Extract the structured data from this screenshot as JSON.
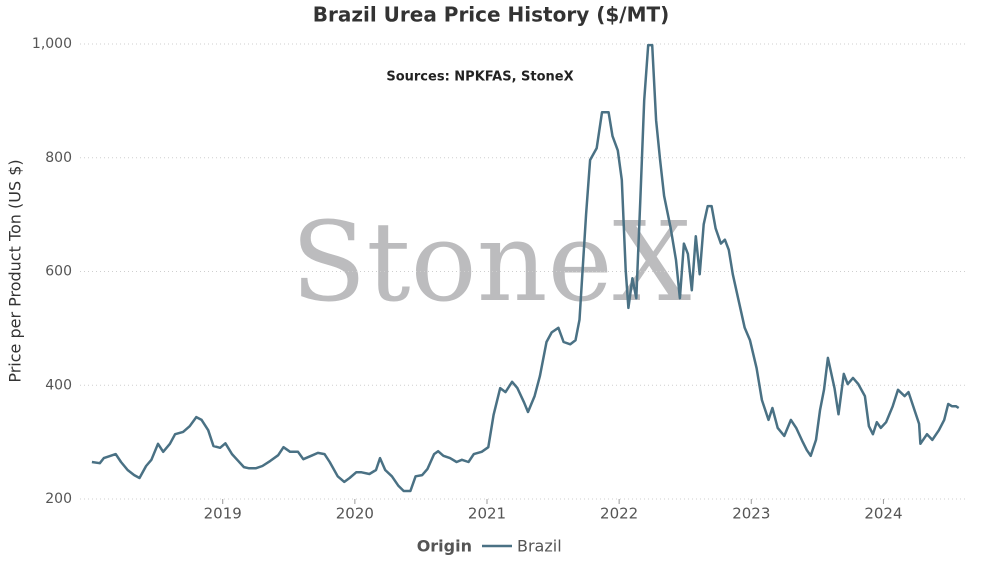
{
  "chart_data": {
    "type": "line",
    "title": "Brazil Urea Price History ($/MT)",
    "subtitle": "Sources: NPKFAS, StoneX",
    "watermark": "StoneX",
    "y_label": "Price per Product Ton (US $)",
    "legend_title": "Origin",
    "x": [
      2018.01,
      2018.07,
      2018.1,
      2018.14,
      2018.19,
      2018.23,
      2018.28,
      2018.33,
      2018.37,
      2018.42,
      2018.46,
      2018.51,
      2018.55,
      2018.6,
      2018.64,
      2018.7,
      2018.75,
      2018.8,
      2018.84,
      2018.89,
      2018.93,
      2018.98,
      2019.02,
      2019.07,
      2019.11,
      2019.16,
      2019.2,
      2019.25,
      2019.3,
      2019.36,
      2019.42,
      2019.46,
      2019.51,
      2019.57,
      2019.61,
      2019.67,
      2019.72,
      2019.77,
      2019.81,
      2019.87,
      2019.92,
      2019.96,
      2020.01,
      2020.05,
      2020.11,
      2020.16,
      2020.19,
      2020.23,
      2020.28,
      2020.33,
      2020.37,
      2020.42,
      2020.46,
      2020.51,
      2020.55,
      2020.6,
      2020.63,
      2020.67,
      2020.72,
      2020.77,
      2020.81,
      2020.86,
      2020.9,
      2020.96,
      2021.01,
      2021.05,
      2021.1,
      2021.14,
      2021.19,
      2021.23,
      2021.28,
      2021.31,
      2021.36,
      2021.4,
      2021.45,
      2021.49,
      2021.54,
      2021.58,
      2021.63,
      2021.67,
      2021.7,
      2021.75,
      2021.78,
      2021.83,
      2021.87,
      2021.92,
      2021.95,
      2021.99,
      2022.02,
      2022.05,
      2022.07,
      2022.1,
      2022.13,
      2022.16,
      2022.19,
      2022.22,
      2022.25,
      2022.28,
      2022.31,
      2022.34,
      2022.39,
      2022.43,
      2022.46,
      2022.49,
      2022.52,
      2022.55,
      2022.58,
      2022.61,
      2022.64,
      2022.67,
      2022.7,
      2022.73,
      2022.77,
      2022.8,
      2022.83,
      2022.86,
      2022.9,
      2022.95,
      2022.99,
      2023.04,
      2023.08,
      2023.13,
      2023.16,
      2023.2,
      2023.25,
      2023.3,
      2023.34,
      2023.39,
      2023.42,
      2023.45,
      2023.49,
      2023.52,
      2023.55,
      2023.58,
      2023.63,
      2023.66,
      2023.7,
      2023.73,
      2023.77,
      2023.81,
      2023.86,
      2023.89,
      2023.92,
      2023.95,
      2023.98,
      2024.02,
      2024.07,
      2024.11,
      2024.16,
      2024.19,
      2024.23,
      2024.27,
      2024.28,
      2024.33,
      2024.37,
      2024.42,
      2024.46,
      2024.49,
      2024.52,
      2024.55,
      2024.57
    ],
    "series": [
      {
        "name": "Brazil",
        "color": "#4a7184",
        "values": [
          265,
          263,
          272,
          275,
          279,
          265,
          251,
          242,
          237,
          258,
          269,
          297,
          283,
          297,
          314,
          318,
          328,
          344,
          339,
          321,
          293,
          290,
          298,
          279,
          269,
          256,
          254,
          254,
          258,
          267,
          277,
          291,
          283,
          283,
          270,
          276,
          281,
          279,
          265,
          240,
          230,
          237,
          247,
          247,
          244,
          251,
          272,
          251,
          240,
          223,
          214,
          214,
          240,
          242,
          253,
          279,
          284,
          276,
          272,
          265,
          269,
          265,
          279,
          283,
          291,
          348,
          395,
          388,
          406,
          395,
          370,
          353,
          381,
          416,
          476,
          493,
          501,
          476,
          472,
          479,
          515,
          701,
          796,
          817,
          880,
          880,
          838,
          813,
          761,
          602,
          536,
          588,
          553,
          725,
          901,
          998,
          998,
          866,
          796,
          733,
          676,
          620,
          553,
          649,
          631,
          567,
          662,
          595,
          683,
          715,
          715,
          676,
          649,
          656,
          638,
          595,
          553,
          501,
          479,
          430,
          374,
          339,
          360,
          325,
          311,
          339,
          325,
          300,
          286,
          276,
          304,
          356,
          392,
          448,
          395,
          349,
          420,
          402,
          413,
          402,
          381,
          328,
          314,
          335,
          325,
          335,
          363,
          392,
          381,
          388,
          360,
          332,
          297,
          314,
          304,
          321,
          339,
          367,
          363,
          363,
          360
        ]
      }
    ],
    "xlim": [
      2017.92,
      2024.64
    ],
    "xticks": [
      2019,
      2020,
      2021,
      2022,
      2023,
      2024
    ],
    "ylim": [
      200,
      1000
    ],
    "yticks": [
      200,
      400,
      600,
      800,
      {
        "value": 1000,
        "label": "1,000"
      }
    ],
    "grid": true
  }
}
